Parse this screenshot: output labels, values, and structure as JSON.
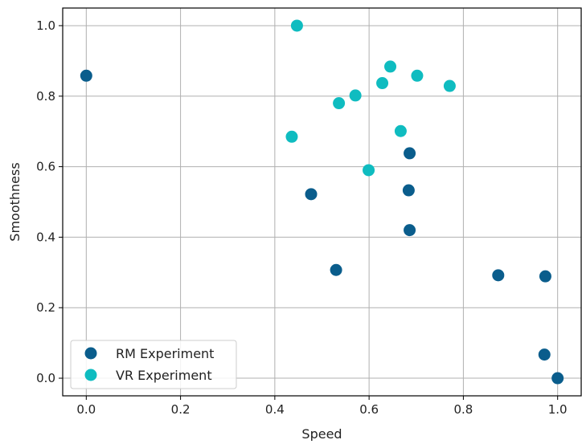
{
  "chart_data": {
    "type": "scatter",
    "xlabel": "Speed",
    "ylabel": "Smoothness",
    "xlim": [
      -0.05,
      1.05
    ],
    "ylim": [
      -0.05,
      1.05
    ],
    "xticks": [
      "0.0",
      "0.2",
      "0.4",
      "0.6",
      "0.8",
      "1.0"
    ],
    "yticks": [
      "0.0",
      "0.2",
      "0.4",
      "0.6",
      "0.8",
      "1.0"
    ],
    "xtick_values": [
      0.0,
      0.2,
      0.4,
      0.6,
      0.8,
      1.0
    ],
    "ytick_values": [
      0.0,
      0.2,
      0.4,
      0.6,
      0.8,
      1.0
    ],
    "grid": true,
    "legend_position": "bottom-left",
    "series": [
      {
        "name": "RM Experiment",
        "color": "#0a5d8c",
        "points": [
          {
            "x": 0.0,
            "y": 0.858
          },
          {
            "x": 0.477,
            "y": 0.522
          },
          {
            "x": 0.53,
            "y": 0.307
          },
          {
            "x": 0.686,
            "y": 0.638
          },
          {
            "x": 0.684,
            "y": 0.533
          },
          {
            "x": 0.686,
            "y": 0.42
          },
          {
            "x": 0.874,
            "y": 0.292
          },
          {
            "x": 0.974,
            "y": 0.289
          },
          {
            "x": 0.972,
            "y": 0.067
          },
          {
            "x": 1.0,
            "y": 0.0
          }
        ]
      },
      {
        "name": "VR Experiment",
        "color": "#0fbcc0",
        "points": [
          {
            "x": 0.447,
            "y": 1.0
          },
          {
            "x": 0.436,
            "y": 0.685
          },
          {
            "x": 0.536,
            "y": 0.78
          },
          {
            "x": 0.571,
            "y": 0.802
          },
          {
            "x": 0.599,
            "y": 0.59
          },
          {
            "x": 0.628,
            "y": 0.837
          },
          {
            "x": 0.645,
            "y": 0.884
          },
          {
            "x": 0.667,
            "y": 0.701
          },
          {
            "x": 0.702,
            "y": 0.858
          },
          {
            "x": 0.771,
            "y": 0.829
          }
        ]
      }
    ]
  }
}
